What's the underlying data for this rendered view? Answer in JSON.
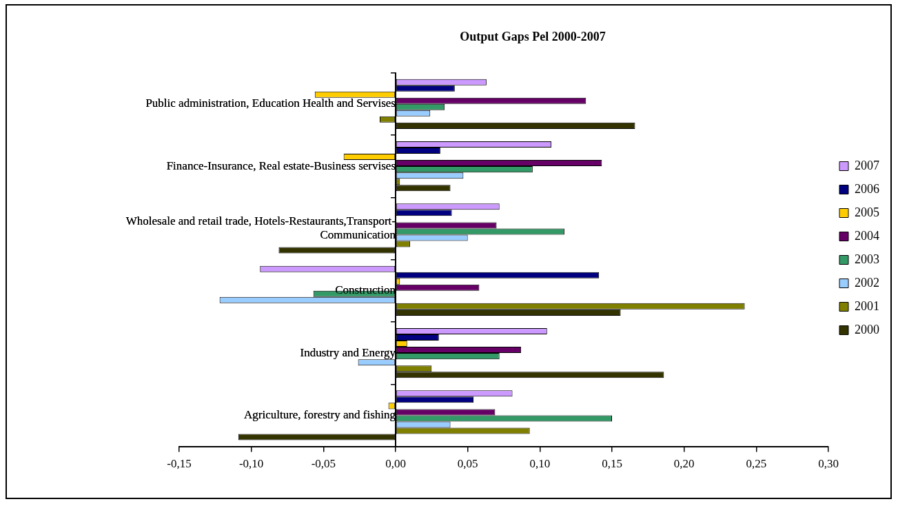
{
  "chart_data": {
    "type": "bar",
    "orientation": "horizontal",
    "title": "Output Gaps Pel 2000-2007",
    "categories": [
      "Public administration, Education Health and Servises",
      "Finance-Insurance, Real estate-Business servises",
      "Wholesale and retail trade, Hotels-Restaurants,Transport-Communication",
      "Construction",
      "Industry and Energy",
      "Agriculture, forestry and fishing"
    ],
    "series": [
      {
        "name": "2007",
        "color": "#cc99ff",
        "values": [
          0.063,
          0.108,
          0.072,
          -0.094,
          0.105,
          0.081
        ]
      },
      {
        "name": "2006",
        "color": "#000080",
        "values": [
          0.041,
          0.031,
          0.039,
          0.141,
          0.03,
          0.054
        ]
      },
      {
        "name": "2005",
        "color": "#ffcc00",
        "values": [
          -0.056,
          -0.036,
          null,
          0.003,
          0.008,
          -0.005
        ]
      },
      {
        "name": "2004",
        "color": "#660066",
        "values": [
          0.132,
          0.143,
          0.07,
          0.058,
          0.087,
          0.069
        ]
      },
      {
        "name": "2003",
        "color": "#339966",
        "values": [
          0.034,
          0.095,
          0.117,
          -0.057,
          0.072,
          0.15
        ]
      },
      {
        "name": "2002",
        "color": "#99ccff",
        "values": [
          0.024,
          0.047,
          0.05,
          -0.122,
          -0.026,
          0.038
        ]
      },
      {
        "name": "2001",
        "color": "#808000",
        "values": [
          -0.011,
          0.003,
          0.01,
          0.242,
          0.025,
          0.093
        ]
      },
      {
        "name": "2000",
        "color": "#333300",
        "values": [
          0.166,
          0.038,
          -0.081,
          0.156,
          0.186,
          -0.109
        ]
      }
    ],
    "xlim": [
      -0.15,
      0.3
    ],
    "xticks": [
      {
        "value": -0.15,
        "label": "-0,15"
      },
      {
        "value": -0.1,
        "label": "-0,10"
      },
      {
        "value": -0.05,
        "label": "-0,05"
      },
      {
        "value": 0,
        "label": "0,00"
      },
      {
        "value": 0.05,
        "label": "0,05"
      },
      {
        "value": 0.1,
        "label": "0,10"
      },
      {
        "value": 0.15,
        "label": "0,15"
      },
      {
        "value": 0.2,
        "label": "0,20"
      },
      {
        "value": 0.25,
        "label": "0,25"
      },
      {
        "value": 0.3,
        "label": "0,30"
      }
    ],
    "grid": false,
    "legend": "right"
  }
}
